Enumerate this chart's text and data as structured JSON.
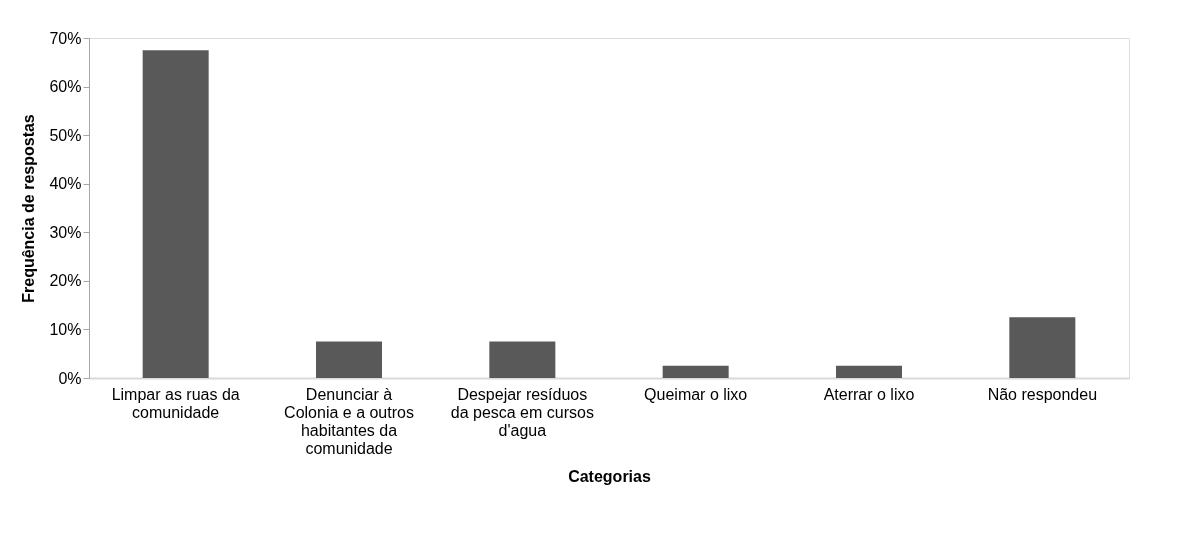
{
  "chart_data": {
    "type": "bar",
    "xlabel": "Categorias",
    "ylabel": "Frequência de respostas",
    "categories": [
      "Limpar as ruas da comunidade",
      "Denunciar à Colonia e a outros habitantes da comunidade",
      "Despejar resíduos da pesca em cursos d'agua",
      "Queimar o lixo",
      "Aterrar o lixo",
      "Não respondeu"
    ],
    "values": [
      67.5,
      7.5,
      7.5,
      2.5,
      2.5,
      12.5
    ],
    "color": "#595959",
    "ylim": [
      0,
      70
    ],
    "yticks": [
      {
        "value": 0,
        "label": "0%"
      },
      {
        "value": 10,
        "label": "10%"
      },
      {
        "value": 20,
        "label": "20%"
      },
      {
        "value": 30,
        "label": "30%"
      },
      {
        "value": 40,
        "label": "40%"
      },
      {
        "value": 50,
        "label": "50%"
      },
      {
        "value": 60,
        "label": "60%"
      },
      {
        "value": 70,
        "label": "70%"
      }
    ],
    "grid": false
  }
}
